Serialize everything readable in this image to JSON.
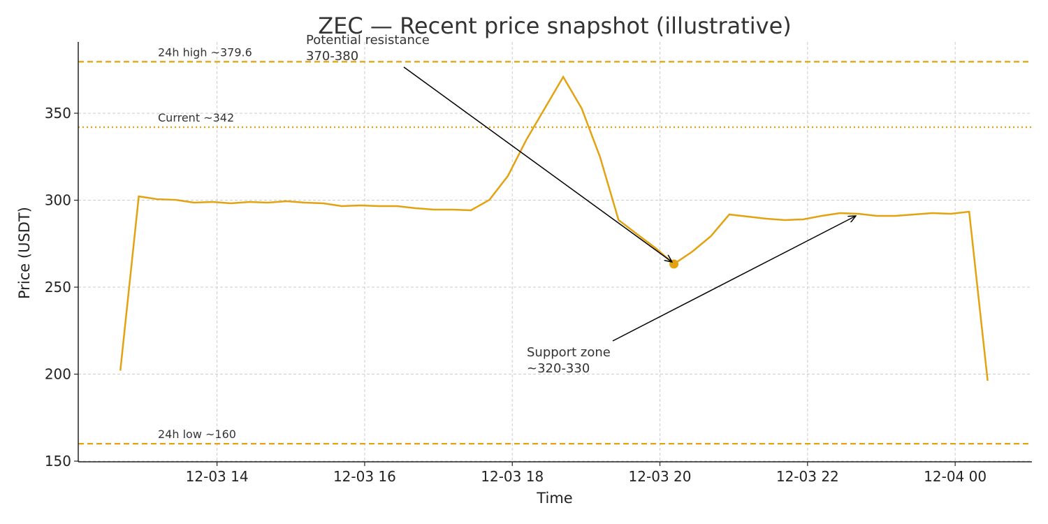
{
  "chart_data": {
    "type": "line",
    "title": "ZEC — Recent price snapshot (illustrative)",
    "x_label": "Time",
    "y_label": "Price (USDT)",
    "x": [
      12.69,
      12.94,
      13.19,
      13.44,
      13.69,
      13.94,
      14.19,
      14.44,
      14.69,
      14.94,
      15.19,
      15.44,
      15.69,
      15.94,
      16.19,
      16.44,
      16.69,
      16.94,
      17.19,
      17.44,
      17.69,
      17.94,
      18.19,
      18.44,
      18.69,
      18.94,
      19.19,
      19.44,
      19.69,
      19.94,
      20.19,
      20.44,
      20.69,
      20.94,
      21.19,
      21.44,
      21.69,
      21.94,
      22.19,
      22.44,
      22.69,
      22.94,
      23.19,
      23.44,
      23.69,
      23.94,
      24.19,
      24.44
    ],
    "series": [
      {
        "name": "ZEC",
        "color": "#e3a20f",
        "values": [
          202,
          302.2,
          300.6,
          300.2,
          298.6,
          299,
          298.2,
          299,
          298.6,
          299.4,
          298.6,
          298.2,
          296.6,
          297,
          296.6,
          296.6,
          295.4,
          294.6,
          294.6,
          294.2,
          300.2,
          313.9,
          334.7,
          352.8,
          370.9,
          352.8,
          324.7,
          288.6,
          280.5,
          272.5,
          263.3,
          270.5,
          279.3,
          291.8,
          290.6,
          289.4,
          288.6,
          289,
          291,
          292.6,
          292.2,
          291,
          291,
          291.8,
          292.6,
          292.2,
          293.4,
          196.2
        ]
      }
    ],
    "xlim": [
      12.12,
      25.04
    ],
    "ylim": [
      149.6,
      391
    ],
    "xticks": [
      {
        "value": 14,
        "label": "12-03 14"
      },
      {
        "value": 16,
        "label": "12-03 16"
      },
      {
        "value": 18,
        "label": "12-03 18"
      },
      {
        "value": 20,
        "label": "12-03 20"
      },
      {
        "value": 22,
        "label": "12-03 22"
      },
      {
        "value": 24,
        "label": "12-04 00"
      }
    ],
    "yticks": [
      150,
      200,
      250,
      300,
      350
    ],
    "grid": true,
    "reference_lines": [
      {
        "value": 379.6,
        "label": "24h high ~379.6",
        "style": "dashed"
      },
      {
        "value": 342,
        "label": "Current ~342",
        "style": "dotted"
      },
      {
        "value": 160,
        "label": "24h low ~160",
        "style": "dashed"
      }
    ],
    "highlight": {
      "x": 20.19,
      "value": 263.3
    },
    "annotations": [
      {
        "lines": [
          "Potential resistance",
          "370-380"
        ]
      },
      {
        "lines": [
          "Support zone",
          "~320-330"
        ]
      }
    ]
  }
}
